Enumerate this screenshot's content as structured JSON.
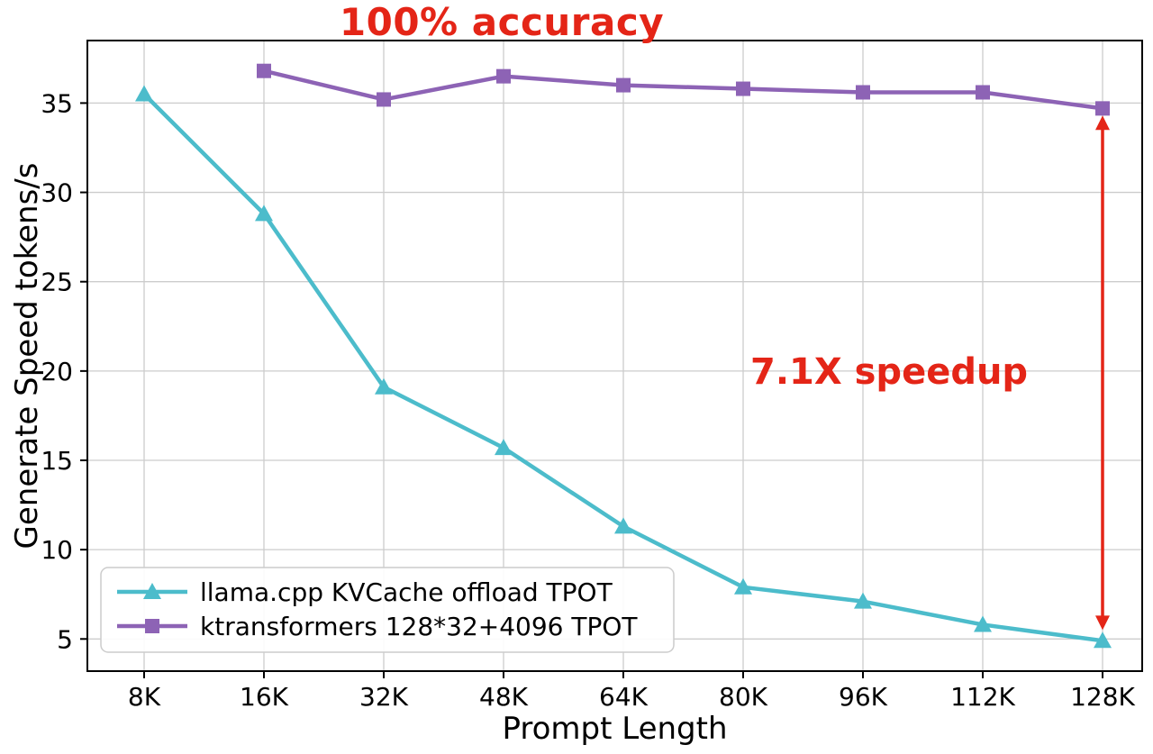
{
  "colors": {
    "background": "#ffffff",
    "axis": "#000000",
    "grid": "#cccccc",
    "legend_border": "#cccccc",
    "annotation": "#e42517"
  },
  "chart_data": {
    "type": "line",
    "title": "100% accuracy",
    "xlabel": "Prompt Length",
    "ylabel": "Generate Speed tokens/s",
    "categories": [
      "8K",
      "16K",
      "32K",
      "48K",
      "64K",
      "80K",
      "96K",
      "112K",
      "128K"
    ],
    "yticks": [
      5,
      10,
      15,
      20,
      25,
      30,
      35
    ],
    "ylim": [
      3.2,
      38.5
    ],
    "grid": true,
    "legend_position": "lower-left",
    "series": [
      {
        "name": "llama.cpp KVCache offload TPOT",
        "color": "#4cbccb",
        "marker": "triangle",
        "values": [
          35.5,
          28.8,
          19.1,
          15.7,
          11.3,
          7.9,
          7.1,
          5.8,
          4.9
        ]
      },
      {
        "name": "ktransformers 128*32+4096 TPOT",
        "color": "#8d63b5",
        "marker": "square",
        "values": [
          null,
          36.8,
          35.2,
          36.5,
          36.0,
          35.8,
          35.6,
          35.6,
          34.7
        ]
      }
    ],
    "annotations": {
      "speedup": "7.1X speedup"
    },
    "arrow": {
      "x_category": "128K",
      "y_top": 34.3,
      "y_bottom": 5.5
    }
  }
}
